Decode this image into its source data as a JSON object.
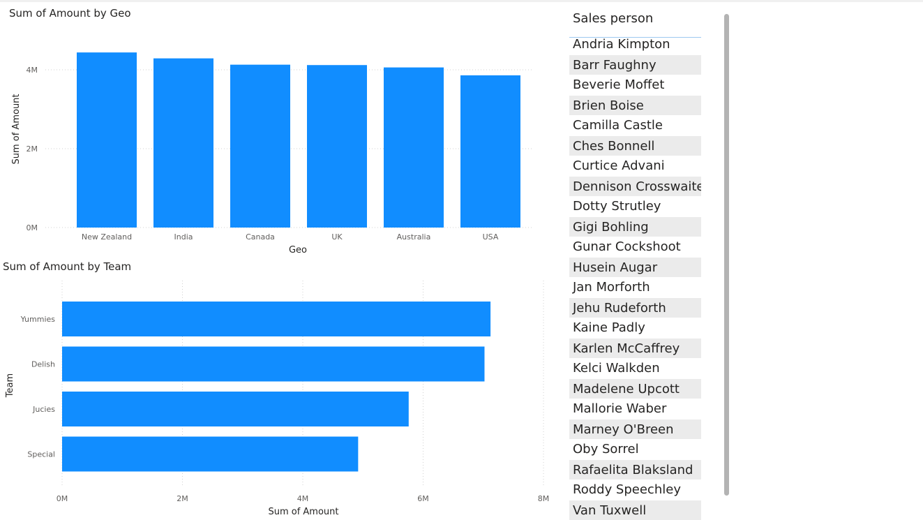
{
  "colors": {
    "bar": "#118dff",
    "grid": "#d0d0d0",
    "scrollbar": "#b3b3b3"
  },
  "geo_chart": {
    "title": "Sum of Amount by Geo",
    "xlabel": "Geo",
    "ylabel": "Sum of Amount",
    "y_ticks": [
      "0M",
      "2M",
      "4M"
    ]
  },
  "team_chart": {
    "title": "Sum of Amount by Team",
    "xlabel": "Sum of Amount",
    "ylabel": "Team",
    "x_ticks": [
      "0M",
      "2M",
      "4M",
      "6M",
      "8M"
    ]
  },
  "chart_data": [
    {
      "type": "bar",
      "title": "Sum of Amount by Geo",
      "xlabel": "Geo",
      "ylabel": "Sum of Amount",
      "categories": [
        "New Zealand",
        "India",
        "Canada",
        "UK",
        "Australia",
        "USA"
      ],
      "values": [
        4.44,
        4.29,
        4.13,
        4.12,
        4.06,
        3.86
      ],
      "unit": "M",
      "ylim": [
        0,
        4.8
      ],
      "grid": true
    },
    {
      "type": "bar",
      "orientation": "horizontal",
      "title": "Sum of Amount by Team",
      "xlabel": "Sum of Amount",
      "ylabel": "Team",
      "categories": [
        "Yummies",
        "Delish",
        "Jucies",
        "Special"
      ],
      "values": [
        7.12,
        7.02,
        5.76,
        4.92
      ],
      "unit": "M",
      "xlim": [
        0,
        8
      ],
      "grid": true
    }
  ],
  "slicer": {
    "header": "Sales person",
    "items": [
      "Andria Kimpton",
      "Barr Faughny",
      "Beverie Moffet",
      "Brien Boise",
      "Camilla Castle",
      "Ches Bonnell",
      "Curtice Advani",
      "Dennison Crosswaite",
      "Dotty Strutley",
      "Gigi Bohling",
      "Gunar Cockshoot",
      "Husein Augar",
      "Jan Morforth",
      "Jehu Rudeforth",
      "Kaine Padly",
      "Karlen McCaffrey",
      "Kelci Walkden",
      "Madelene Upcott",
      "Mallorie Waber",
      "Marney O'Breen",
      "Oby Sorrel",
      "Rafaelita Blaksland",
      "Roddy Speechley",
      "Van Tuxwell"
    ]
  }
}
